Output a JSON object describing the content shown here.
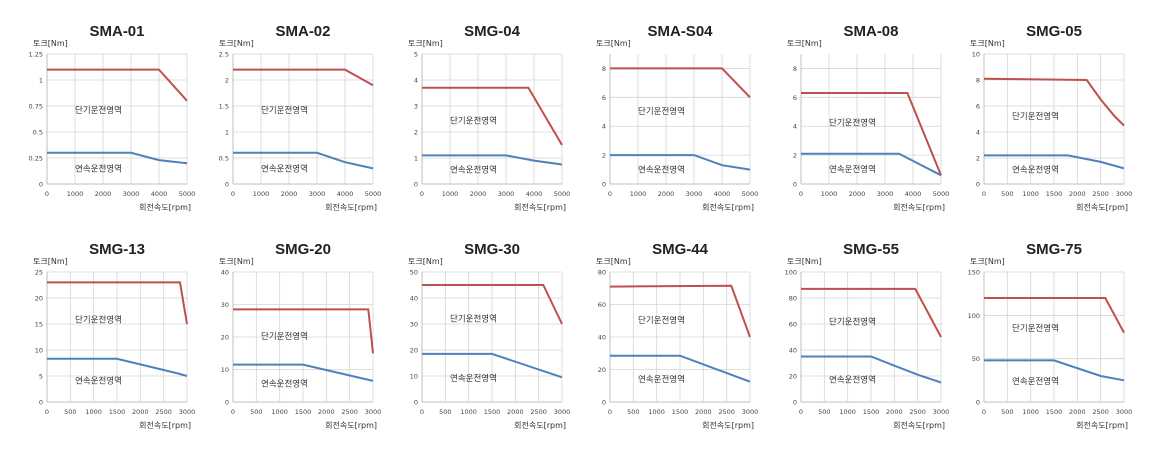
{
  "y_unit_label": "토크[Nm]",
  "x_unit_label": "회전속도[rpm]",
  "colors": {
    "peak": "#c0504d",
    "continuous": "#4f81bd",
    "grid": "#d4d4d4"
  },
  "chart_data": [
    {
      "type": "line",
      "title": "SMA-01",
      "xlim": [
        0,
        5000
      ],
      "ylim": [
        0,
        1.25
      ],
      "xticks": [
        0,
        1000,
        2000,
        3000,
        4000,
        5000
      ],
      "yticks": [
        0,
        0.25,
        0.5,
        0.75,
        1,
        1.25
      ],
      "series": [
        {
          "name": "단기운전영역",
          "points": [
            [
              0,
              1.1
            ],
            [
              4000,
              1.1
            ],
            [
              5000,
              0.8
            ]
          ]
        },
        {
          "name": "연속운전영역",
          "points": [
            [
              0,
              0.3
            ],
            [
              3000,
              0.3
            ],
            [
              4000,
              0.23
            ],
            [
              5000,
              0.2
            ]
          ]
        }
      ]
    },
    {
      "type": "line",
      "title": "SMA-02",
      "xlim": [
        0,
        5000
      ],
      "ylim": [
        0,
        2.5
      ],
      "xticks": [
        0,
        1000,
        2000,
        3000,
        4000,
        5000
      ],
      "yticks": [
        0,
        0.5,
        1,
        1.5,
        2,
        2.5
      ],
      "series": [
        {
          "name": "단기운전영역",
          "points": [
            [
              0,
              2.2
            ],
            [
              4000,
              2.2
            ],
            [
              5000,
              1.9
            ]
          ]
        },
        {
          "name": "연속운전영역",
          "points": [
            [
              0,
              0.6
            ],
            [
              3000,
              0.6
            ],
            [
              4000,
              0.42
            ],
            [
              5000,
              0.3
            ]
          ]
        }
      ]
    },
    {
      "type": "line",
      "title": "SMG-04",
      "xlim": [
        0,
        5000
      ],
      "ylim": [
        0,
        5
      ],
      "xticks": [
        0,
        1000,
        2000,
        3000,
        4000,
        5000
      ],
      "yticks": [
        0,
        1,
        2,
        3,
        4,
        5
      ],
      "series": [
        {
          "name": "단기운전영역",
          "points": [
            [
              0,
              3.7
            ],
            [
              3800,
              3.7
            ],
            [
              5000,
              1.5
            ]
          ]
        },
        {
          "name": "연속운전영역",
          "points": [
            [
              0,
              1.1
            ],
            [
              3000,
              1.1
            ],
            [
              4000,
              0.9
            ],
            [
              5000,
              0.75
            ]
          ]
        }
      ]
    },
    {
      "type": "line",
      "title": "SMA-S04",
      "xlim": [
        0,
        5000
      ],
      "ylim": [
        0,
        9
      ],
      "xticks": [
        0,
        1000,
        2000,
        3000,
        4000,
        5000
      ],
      "yticks": [
        0,
        2,
        4,
        6,
        8
      ],
      "series": [
        {
          "name": "단기운전영역",
          "points": [
            [
              0,
              8
            ],
            [
              4000,
              8
            ],
            [
              5000,
              6
            ]
          ]
        },
        {
          "name": "연속운전영역",
          "points": [
            [
              0,
              2
            ],
            [
              3000,
              2
            ],
            [
              4000,
              1.3
            ],
            [
              5000,
              1
            ]
          ]
        }
      ]
    },
    {
      "type": "line",
      "title": "SMA-08",
      "xlim": [
        0,
        5000
      ],
      "ylim": [
        0,
        9
      ],
      "xticks": [
        0,
        1000,
        2000,
        3000,
        4000,
        5000
      ],
      "yticks": [
        0,
        2,
        4,
        6,
        8
      ],
      "series": [
        {
          "name": "단기운전영역",
          "points": [
            [
              0,
              6.3
            ],
            [
              3800,
              6.3
            ],
            [
              5000,
              0.6
            ]
          ]
        },
        {
          "name": "연속운전영역",
          "points": [
            [
              0,
              2.1
            ],
            [
              3500,
              2.1
            ],
            [
              4000,
              1.6
            ],
            [
              5000,
              0.6
            ]
          ]
        }
      ]
    },
    {
      "type": "line",
      "title": "SMG-05",
      "xlim": [
        0,
        3000
      ],
      "ylim": [
        0,
        10
      ],
      "xticks": [
        0,
        500,
        1000,
        1500,
        2000,
        2500,
        3000
      ],
      "yticks": [
        0,
        2,
        4,
        6,
        8,
        10
      ],
      "series": [
        {
          "name": "단기운전영역",
          "points": [
            [
              0,
              8.1
            ],
            [
              2200,
              8
            ],
            [
              2500,
              6.5
            ],
            [
              2800,
              5.2
            ],
            [
              3000,
              4.5
            ]
          ]
        },
        {
          "name": "연속운전영역",
          "points": [
            [
              0,
              2.2
            ],
            [
              1800,
              2.2
            ],
            [
              2500,
              1.7
            ],
            [
              3000,
              1.2
            ]
          ]
        }
      ]
    },
    {
      "type": "line",
      "title": "SMG-13",
      "xlim": [
        0,
        3000
      ],
      "ylim": [
        0,
        25
      ],
      "xticks": [
        0,
        500,
        1000,
        1500,
        2000,
        2500,
        3000
      ],
      "yticks": [
        0,
        5,
        10,
        15,
        20,
        25
      ],
      "series": [
        {
          "name": "단기운전영역",
          "points": [
            [
              0,
              23
            ],
            [
              2850,
              23
            ],
            [
              3000,
              15
            ]
          ]
        },
        {
          "name": "연속운전영역",
          "points": [
            [
              0,
              8.3
            ],
            [
              1500,
              8.3
            ],
            [
              2800,
              5.5
            ],
            [
              3000,
              5
            ]
          ]
        }
      ]
    },
    {
      "type": "line",
      "title": "SMG-20",
      "xlim": [
        0,
        3000
      ],
      "ylim": [
        0,
        40
      ],
      "xticks": [
        0,
        500,
        1000,
        1500,
        2000,
        2500,
        3000
      ],
      "yticks": [
        0,
        10,
        20,
        30,
        40
      ],
      "series": [
        {
          "name": "단기운전영역",
          "points": [
            [
              0,
              28.5
            ],
            [
              2900,
              28.5
            ],
            [
              3000,
              15
            ]
          ]
        },
        {
          "name": "연속운전영역",
          "points": [
            [
              0,
              11.5
            ],
            [
              1500,
              11.5
            ],
            [
              3000,
              6.5
            ]
          ]
        }
      ]
    },
    {
      "type": "line",
      "title": "SMG-30",
      "xlim": [
        0,
        3000
      ],
      "ylim": [
        0,
        50
      ],
      "xticks": [
        0,
        500,
        1000,
        1500,
        2000,
        2500,
        3000
      ],
      "yticks": [
        0,
        10,
        20,
        30,
        40,
        50
      ],
      "series": [
        {
          "name": "단기운전영역",
          "points": [
            [
              0,
              45
            ],
            [
              2600,
              45
            ],
            [
              3000,
              30
            ]
          ]
        },
        {
          "name": "연속운전영역",
          "points": [
            [
              0,
              18.5
            ],
            [
              1500,
              18.5
            ],
            [
              3000,
              9.5
            ]
          ]
        }
      ]
    },
    {
      "type": "line",
      "title": "SMG-44",
      "xlim": [
        0,
        3000
      ],
      "ylim": [
        0,
        80
      ],
      "xticks": [
        0,
        500,
        1000,
        1500,
        2000,
        2500,
        3000
      ],
      "yticks": [
        0,
        20,
        40,
        60,
        80
      ],
      "series": [
        {
          "name": "단기운전영역",
          "points": [
            [
              0,
              71
            ],
            [
              2600,
              71.5
            ],
            [
              3000,
              40
            ]
          ]
        },
        {
          "name": "연속운전영역",
          "points": [
            [
              0,
              28.5
            ],
            [
              1500,
              28.5
            ],
            [
              3000,
              12.5
            ]
          ]
        }
      ]
    },
    {
      "type": "line",
      "title": "SMG-55",
      "xlim": [
        0,
        3000
      ],
      "ylim": [
        0,
        100
      ],
      "xticks": [
        0,
        500,
        1000,
        1500,
        2000,
        2500,
        3000
      ],
      "yticks": [
        0,
        20,
        40,
        60,
        80,
        100
      ],
      "series": [
        {
          "name": "단기운전영역",
          "points": [
            [
              0,
              87
            ],
            [
              2450,
              87
            ],
            [
              3000,
              50
            ]
          ]
        },
        {
          "name": "연속운전영역",
          "points": [
            [
              0,
              35
            ],
            [
              1500,
              35
            ],
            [
              2500,
              21
            ],
            [
              3000,
              15
            ]
          ]
        }
      ]
    },
    {
      "type": "line",
      "title": "SMG-75",
      "xlim": [
        0,
        3000
      ],
      "ylim": [
        0,
        150
      ],
      "xticks": [
        0,
        500,
        1000,
        1500,
        2000,
        2500,
        3000
      ],
      "yticks": [
        0,
        50,
        100,
        150
      ],
      "series": [
        {
          "name": "단기운전영역",
          "points": [
            [
              0,
              120
            ],
            [
              2600,
              120
            ],
            [
              3000,
              80
            ]
          ]
        },
        {
          "name": "연속운전영역",
          "points": [
            [
              0,
              48
            ],
            [
              1500,
              48
            ],
            [
              2500,
              30
            ],
            [
              3000,
              25
            ]
          ]
        }
      ]
    }
  ]
}
